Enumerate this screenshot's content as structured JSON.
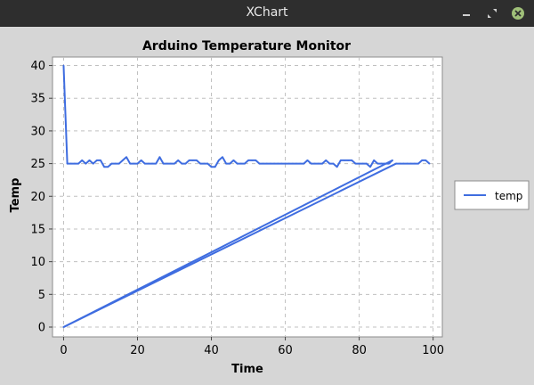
{
  "window": {
    "title": "XChart",
    "controls": {
      "minimize": "minimize-icon",
      "maximize": "maximize-icon",
      "close": "close-icon"
    }
  },
  "colors": {
    "series": "#3f6de0",
    "plot_background": "#ffffff",
    "window_background": "#d6d6d6",
    "grid": "#c0c0c0",
    "titlebar": "#2e2e2e",
    "close_button": "#9fbf78"
  },
  "chart_data": {
    "type": "line",
    "title": "Arduino Temperature Monitor",
    "xlabel": "Time",
    "ylabel": "Temp",
    "xlim": [
      -3,
      102.5
    ],
    "ylim": [
      -1.5,
      41.3
    ],
    "xticks": [
      0,
      20,
      40,
      60,
      80,
      100
    ],
    "yticks": [
      0,
      5,
      10,
      15,
      20,
      25,
      30,
      35,
      40
    ],
    "grid": true,
    "legend_position": "right",
    "series": [
      {
        "name": "temp",
        "segments": [
          {
            "x": [
              0,
              1,
              2,
              3,
              4,
              5,
              6,
              7,
              8,
              9,
              10,
              11,
              12,
              13,
              14,
              15,
              16,
              17,
              18,
              19,
              20,
              21,
              22,
              23,
              24,
              25,
              26,
              27,
              28,
              29,
              30,
              31,
              32,
              33,
              34,
              35,
              36,
              37,
              38,
              39,
              40,
              41,
              42,
              43,
              44,
              45,
              46,
              47,
              48,
              49,
              50,
              51,
              52,
              53,
              54,
              55,
              56,
              57,
              58,
              59,
              60,
              61,
              62,
              63,
              64,
              65,
              66,
              67,
              68,
              69,
              70,
              71,
              72,
              73,
              74,
              75,
              76,
              77,
              78,
              79,
              80,
              81,
              82,
              83,
              84,
              85,
              86,
              87,
              88,
              89
            ],
            "y": [
              40,
              25,
              25,
              25,
              25,
              25.5,
              25,
              25.5,
              25,
              25.5,
              25.5,
              24.5,
              24.5,
              25,
              25,
              25,
              25.5,
              26,
              25,
              25,
              25,
              25.5,
              25,
              25,
              25,
              25,
              26,
              25,
              25,
              25,
              25,
              25.5,
              25,
              25,
              25.5,
              25.5,
              25.5,
              25,
              25,
              25,
              24.5,
              24.5,
              25.5,
              26,
              25,
              25,
              25.5,
              25,
              25,
              25,
              25.5,
              25.5,
              25.5,
              25,
              25,
              25,
              25,
              25,
              25,
              25,
              25,
              25,
              25,
              25,
              25,
              25,
              25.5,
              25,
              25,
              25,
              25,
              25.5,
              25,
              25,
              24.5,
              25.5,
              25.5,
              25.5,
              25.5,
              25,
              25,
              25,
              25,
              24.5,
              25.5,
              25,
              25,
              25,
              25,
              25.5
            ]
          },
          {
            "x": [
              89,
              0
            ],
            "y": [
              25.5,
              0
            ]
          },
          {
            "x": [
              0,
              90
            ],
            "y": [
              0,
              25
            ]
          },
          {
            "x": [
              90,
              91,
              92,
              93,
              94,
              95,
              96,
              97,
              98,
              99
            ],
            "y": [
              25,
              25,
              25,
              25,
              25,
              25,
              25,
              25.5,
              25.5,
              25
            ]
          }
        ]
      }
    ]
  }
}
